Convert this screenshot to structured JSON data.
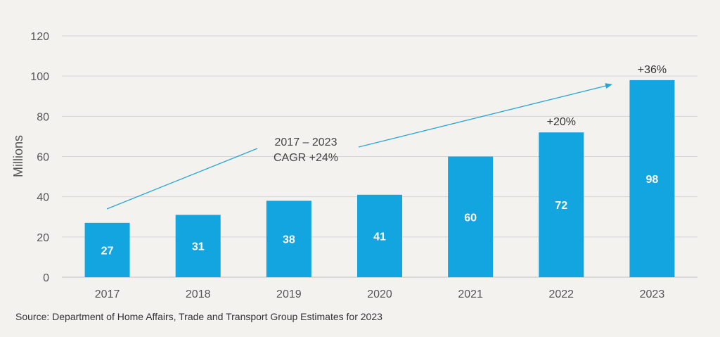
{
  "colors": {
    "background": "#f4f2ef",
    "bar": "#12a5e0",
    "bar_label": "#ffffff",
    "arrow": "#2aa6d6",
    "grid": "#d4d4d4",
    "text": "#555555"
  },
  "chart_data": {
    "type": "bar",
    "categories": [
      "2017",
      "2018",
      "2019",
      "2020",
      "2021",
      "2022",
      "2023"
    ],
    "values": [
      27,
      31,
      38,
      41,
      60,
      72,
      98
    ],
    "ylabel": "Millions",
    "ylim": [
      0,
      120
    ],
    "yticks": [
      0,
      20,
      40,
      60,
      80,
      100,
      120
    ],
    "grid": true,
    "data_labels": [
      "27",
      "31",
      "38",
      "41",
      "60",
      "72",
      "98"
    ],
    "growth_labels": [
      {
        "category": "2022",
        "text": "+20%"
      },
      {
        "category": "2023",
        "text": "+36%"
      }
    ],
    "annotation": {
      "line1": "2017 – 2023",
      "line2": "CAGR +24%"
    }
  },
  "source": "Source: Department of Home Affairs, Trade and Transport Group Estimates for 2023"
}
